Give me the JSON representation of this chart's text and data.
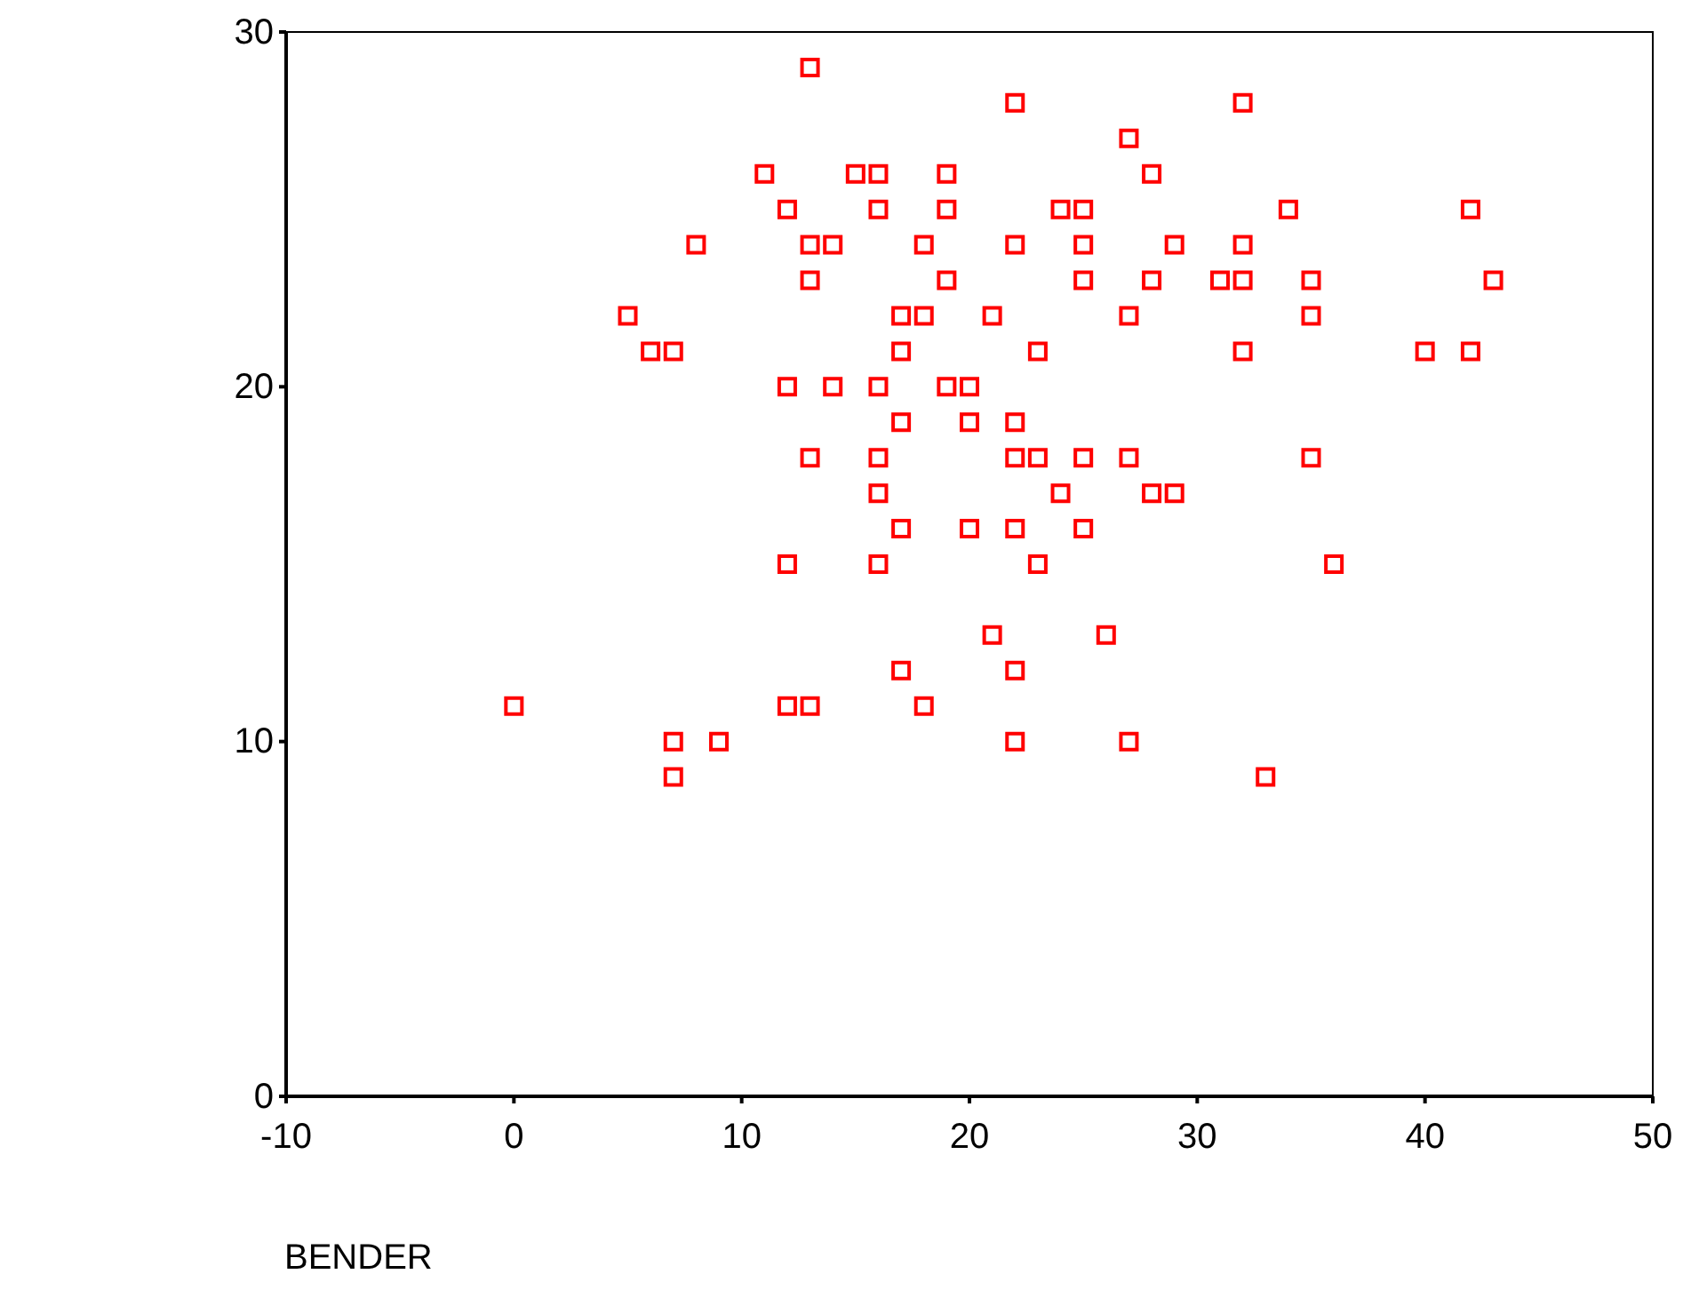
{
  "chart_data": {
    "type": "scatter",
    "xlabel": "BENDER",
    "xlim": [
      -10,
      50
    ],
    "ylim": [
      0,
      30
    ],
    "xticks": [
      -10,
      0,
      10,
      20,
      30,
      40,
      50
    ],
    "yticks": [
      0,
      10,
      20,
      30
    ],
    "grid": false,
    "marker": "square",
    "series": [
      {
        "color": "#ff0000",
        "x": [
          13,
          22,
          32,
          27,
          11,
          15,
          16,
          19,
          28,
          12,
          16,
          19,
          24,
          25,
          34,
          42,
          8,
          13,
          14,
          18,
          22,
          25,
          29,
          32,
          13,
          19,
          25,
          28,
          31,
          32,
          35,
          43,
          5,
          17,
          18,
          21,
          27,
          35,
          6,
          7,
          17,
          23,
          32,
          40,
          42,
          12,
          14,
          16,
          19,
          20,
          17,
          20,
          22,
          13,
          16,
          22,
          23,
          25,
          27,
          35,
          16,
          24,
          28,
          29,
          17,
          20,
          22,
          25,
          12,
          16,
          23,
          36,
          21,
          26,
          17,
          22,
          0,
          12,
          13,
          18,
          7,
          9,
          22,
          27,
          7,
          33
        ],
        "values": [
          29,
          28,
          28,
          27,
          26,
          26,
          26,
          26,
          26,
          25,
          25,
          25,
          25,
          25,
          25,
          25,
          24,
          24,
          24,
          24,
          24,
          24,
          24,
          24,
          23,
          23,
          23,
          23,
          23,
          23,
          23,
          23,
          22,
          22,
          22,
          22,
          22,
          22,
          21,
          21,
          21,
          21,
          21,
          21,
          21,
          20,
          20,
          20,
          20,
          20,
          19,
          19,
          19,
          18,
          18,
          18,
          18,
          18,
          18,
          18,
          17,
          17,
          17,
          17,
          16,
          16,
          16,
          16,
          15,
          15,
          15,
          15,
          13,
          13,
          12,
          12,
          11,
          11,
          11,
          11,
          10,
          10,
          10,
          10,
          9,
          9
        ]
      }
    ]
  }
}
